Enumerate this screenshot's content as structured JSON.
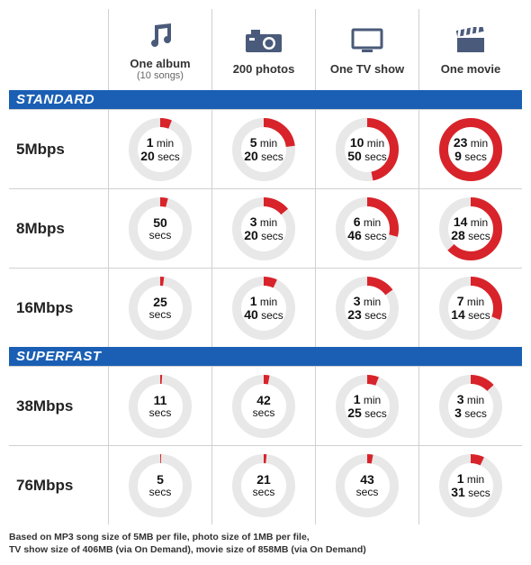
{
  "colors": {
    "section_bg": "#1a5fb4",
    "track": "#e8e8e8",
    "arc": "#d8232a",
    "icon": "#4a5a7a"
  },
  "dial": {
    "size": 74,
    "radius": 30,
    "stroke_width": 10
  },
  "columns": [
    {
      "id": "album",
      "icon": "music",
      "title": "One album",
      "sub": "(10 songs)"
    },
    {
      "id": "photos",
      "icon": "camera",
      "title": "200 photos",
      "sub": ""
    },
    {
      "id": "tv",
      "icon": "tv",
      "title": "One TV show",
      "sub": ""
    },
    {
      "id": "movie",
      "icon": "clapper",
      "title": "One movie",
      "sub": ""
    }
  ],
  "sections": [
    {
      "label": "STANDARD",
      "rows": [
        {
          "speed": "5Mbps",
          "cells": [
            {
              "line1_n": "1",
              "line1_u": "min",
              "line2_n": "20",
              "line2_u": "secs",
              "fill": 0.06
            },
            {
              "line1_n": "5",
              "line1_u": "min",
              "line2_n": "20",
              "line2_u": "secs",
              "fill": 0.23
            },
            {
              "line1_n": "10",
              "line1_u": "min",
              "line2_n": "50",
              "line2_u": "secs",
              "fill": 0.47
            },
            {
              "line1_n": "23",
              "line1_u": "min",
              "line2_n": "9",
              "line2_u": "secs",
              "fill": 1.0
            }
          ]
        },
        {
          "speed": "8Mbps",
          "cells": [
            {
              "line1_n": "50",
              "line1_u": "",
              "line2_n": "",
              "line2_u": "secs",
              "fill": 0.04
            },
            {
              "line1_n": "3",
              "line1_u": "min",
              "line2_n": "20",
              "line2_u": "secs",
              "fill": 0.14
            },
            {
              "line1_n": "6",
              "line1_u": "min",
              "line2_n": "46",
              "line2_u": "secs",
              "fill": 0.29
            },
            {
              "line1_n": "14",
              "line1_u": "min",
              "line2_n": "28",
              "line2_u": "secs",
              "fill": 0.63
            }
          ]
        },
        {
          "speed": "16Mbps",
          "cells": [
            {
              "line1_n": "25",
              "line1_u": "",
              "line2_n": "",
              "line2_u": "secs",
              "fill": 0.02
            },
            {
              "line1_n": "1",
              "line1_u": "min",
              "line2_n": "40",
              "line2_u": "secs",
              "fill": 0.07
            },
            {
              "line1_n": "3",
              "line1_u": "min",
              "line2_n": "23",
              "line2_u": "secs",
              "fill": 0.15
            },
            {
              "line1_n": "7",
              "line1_u": "min",
              "line2_n": "14",
              "line2_u": "secs",
              "fill": 0.31
            }
          ]
        }
      ]
    },
    {
      "label": "SUPERFAST",
      "rows": [
        {
          "speed": "38Mbps",
          "cells": [
            {
              "line1_n": "11",
              "line1_u": "",
              "line2_n": "",
              "line2_u": "secs",
              "fill": 0.01
            },
            {
              "line1_n": "42",
              "line1_u": "",
              "line2_n": "",
              "line2_u": "secs",
              "fill": 0.03
            },
            {
              "line1_n": "1",
              "line1_u": "min",
              "line2_n": "25",
              "line2_u": "secs",
              "fill": 0.06
            },
            {
              "line1_n": "3",
              "line1_u": "min",
              "line2_n": "3",
              "line2_u": "secs",
              "fill": 0.13
            }
          ]
        },
        {
          "speed": "76Mbps",
          "cells": [
            {
              "line1_n": "5",
              "line1_u": "",
              "line2_n": "",
              "line2_u": "secs",
              "fill": 0.005
            },
            {
              "line1_n": "21",
              "line1_u": "",
              "line2_n": "",
              "line2_u": "secs",
              "fill": 0.015
            },
            {
              "line1_n": "43",
              "line1_u": "",
              "line2_n": "",
              "line2_u": "secs",
              "fill": 0.03
            },
            {
              "line1_n": "1",
              "line1_u": "min",
              "line2_n": "31",
              "line2_u": "secs",
              "fill": 0.07
            }
          ]
        }
      ]
    }
  ],
  "footnote": {
    "line1": "Based on MP3 song size of 5MB per file, photo size of 1MB per file,",
    "line2": "TV show size of 406MB (via On Demand), movie size of 858MB (via On Demand)"
  }
}
